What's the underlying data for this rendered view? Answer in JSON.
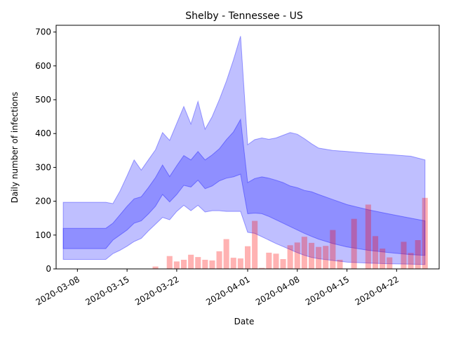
{
  "chart_data": {
    "type": "area",
    "title": "Shelby - Tennessee - US",
    "xlabel": "Date",
    "ylabel": "Daily number of infections",
    "ylim": [
      0,
      720
    ],
    "xlim": [
      "2020-03-05",
      "2020-04-28"
    ],
    "yticks": [
      0,
      100,
      200,
      300,
      400,
      500,
      600,
      700
    ],
    "xticks": [
      "2020-03-08",
      "2020-03-15",
      "2020-03-22",
      "2020-04-01",
      "2020-04-08",
      "2020-04-15",
      "2020-04-22"
    ],
    "grid": false,
    "colors": {
      "outer_band": "#0000ff",
      "inner_band": "#0000ff",
      "bars": "#ff0000"
    },
    "bars": {
      "dates": [
        "2020-03-19",
        "2020-03-21",
        "2020-03-22",
        "2020-03-23",
        "2020-03-24",
        "2020-03-25",
        "2020-03-26",
        "2020-03-27",
        "2020-03-28",
        "2020-03-29",
        "2020-03-30",
        "2020-03-31",
        "2020-04-01",
        "2020-04-02",
        "2020-04-03",
        "2020-04-04",
        "2020-04-05",
        "2020-04-06",
        "2020-04-07",
        "2020-04-08",
        "2020-04-09",
        "2020-04-10",
        "2020-04-11",
        "2020-04-12",
        "2020-04-13",
        "2020-04-14",
        "2020-04-16",
        "2020-04-18",
        "2020-04-19",
        "2020-04-20",
        "2020-04-21",
        "2020-04-23",
        "2020-04-24",
        "2020-04-25",
        "2020-04-26"
      ],
      "values": [
        7,
        38,
        22,
        27,
        42,
        35,
        27,
        25,
        52,
        88,
        33,
        31,
        67,
        142,
        3,
        48,
        45,
        29,
        70,
        78,
        95,
        77,
        65,
        68,
        115,
        27,
        148,
        190,
        97,
        60,
        34,
        80,
        47,
        85,
        210
      ]
    },
    "outer_band": {
      "dates": [
        "2020-03-06",
        "2020-03-09",
        "2020-03-12",
        "2020-03-13",
        "2020-03-14",
        "2020-03-15",
        "2020-03-16",
        "2020-03-17",
        "2020-03-18",
        "2020-03-19",
        "2020-03-20",
        "2020-03-21",
        "2020-03-22",
        "2020-03-23",
        "2020-03-24",
        "2020-03-25",
        "2020-03-26",
        "2020-03-27",
        "2020-03-28",
        "2020-03-29",
        "2020-03-30",
        "2020-03-31",
        "2020-04-01",
        "2020-04-02",
        "2020-04-03",
        "2020-04-04",
        "2020-04-05",
        "2020-04-06",
        "2020-04-07",
        "2020-04-08",
        "2020-04-09",
        "2020-04-10",
        "2020-04-11",
        "2020-04-13",
        "2020-04-15",
        "2020-04-18",
        "2020-04-21",
        "2020-04-24",
        "2020-04-26"
      ],
      "upper": [
        197,
        197,
        197,
        193,
        230,
        275,
        322,
        292,
        322,
        352,
        403,
        380,
        430,
        480,
        428,
        495,
        413,
        450,
        500,
        555,
        618,
        688,
        367,
        382,
        387,
        383,
        387,
        395,
        403,
        398,
        385,
        370,
        357,
        350,
        347,
        342,
        338,
        333,
        322
      ],
      "lower": [
        28,
        28,
        28,
        45,
        55,
        67,
        81,
        90,
        112,
        132,
        152,
        145,
        170,
        188,
        172,
        188,
        168,
        172,
        172,
        170,
        170,
        170,
        108,
        105,
        95,
        85,
        75,
        66,
        57,
        48,
        40,
        34,
        30,
        25,
        20,
        17,
        15,
        14,
        13
      ]
    },
    "inner_band": {
      "dates": [
        "2020-03-06",
        "2020-03-09",
        "2020-03-12",
        "2020-03-13",
        "2020-03-14",
        "2020-03-15",
        "2020-03-16",
        "2020-03-17",
        "2020-03-18",
        "2020-03-19",
        "2020-03-20",
        "2020-03-21",
        "2020-03-22",
        "2020-03-23",
        "2020-03-24",
        "2020-03-25",
        "2020-03-26",
        "2020-03-27",
        "2020-03-28",
        "2020-03-29",
        "2020-03-30",
        "2020-03-31",
        "2020-04-01",
        "2020-04-02",
        "2020-04-03",
        "2020-04-04",
        "2020-04-05",
        "2020-04-06",
        "2020-04-07",
        "2020-04-08",
        "2020-04-09",
        "2020-04-10",
        "2020-04-11",
        "2020-04-13",
        "2020-04-15",
        "2020-04-18",
        "2020-04-21",
        "2020-04-24",
        "2020-04-26"
      ],
      "upper": [
        120,
        120,
        120,
        135,
        160,
        185,
        207,
        213,
        240,
        270,
        307,
        273,
        305,
        335,
        322,
        347,
        322,
        337,
        355,
        382,
        405,
        442,
        255,
        267,
        272,
        268,
        262,
        255,
        245,
        240,
        232,
        228,
        220,
        205,
        190,
        175,
        162,
        150,
        142
      ],
      "lower": [
        60,
        60,
        60,
        85,
        100,
        115,
        135,
        142,
        162,
        185,
        220,
        198,
        220,
        247,
        242,
        262,
        237,
        245,
        260,
        268,
        272,
        280,
        163,
        165,
        163,
        155,
        145,
        135,
        125,
        115,
        105,
        96,
        88,
        75,
        65,
        55,
        48,
        42,
        40
      ]
    }
  }
}
